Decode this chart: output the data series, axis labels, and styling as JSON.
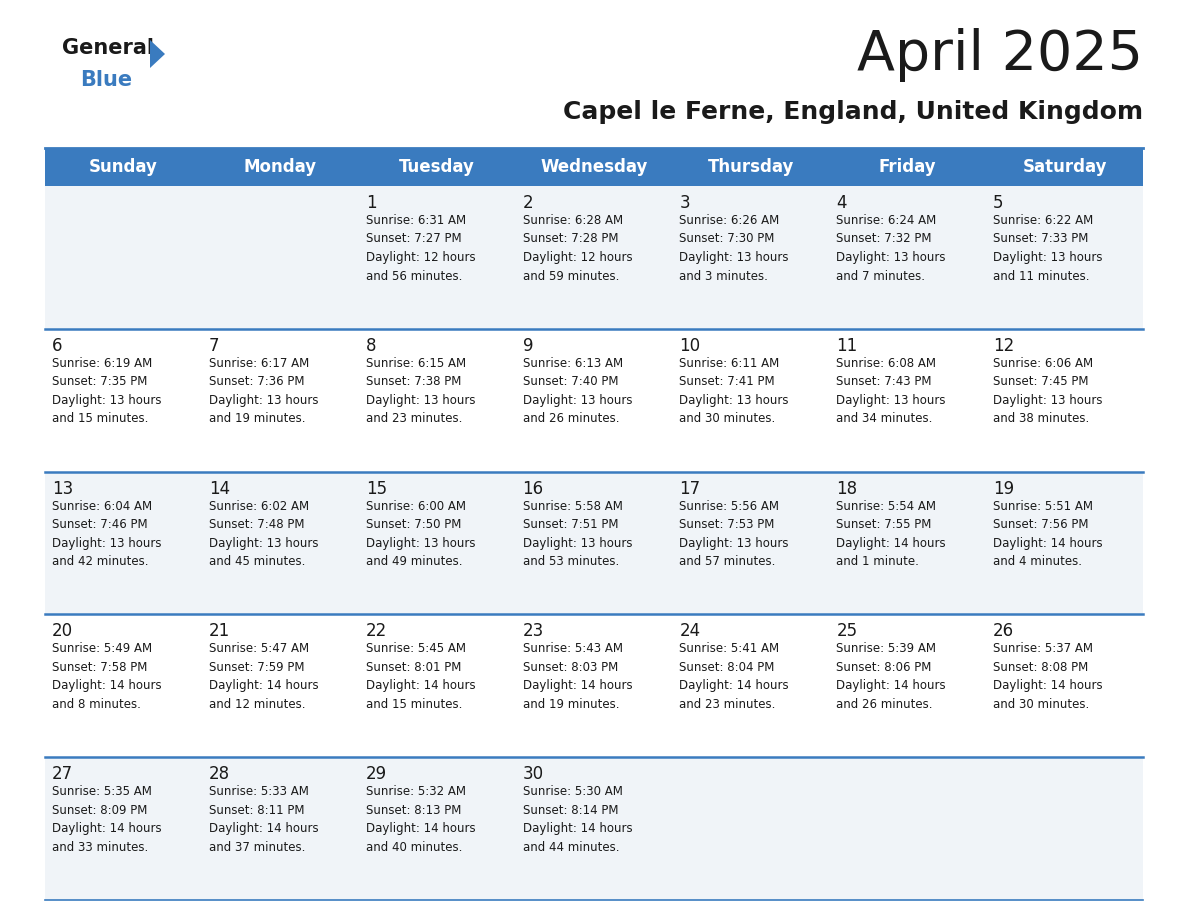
{
  "title": "April 2025",
  "subtitle": "Capel le Ferne, England, United Kingdom",
  "header_bg": "#3a7bbf",
  "header_text": "#ffffff",
  "row_bg_odd": "#f0f4f8",
  "row_bg_even": "#ffffff",
  "separator_color": "#3a7bbf",
  "day_headers": [
    "Sunday",
    "Monday",
    "Tuesday",
    "Wednesday",
    "Thursday",
    "Friday",
    "Saturday"
  ],
  "weeks": [
    [
      {
        "day": "",
        "info": ""
      },
      {
        "day": "",
        "info": ""
      },
      {
        "day": "1",
        "info": "Sunrise: 6:31 AM\nSunset: 7:27 PM\nDaylight: 12 hours\nand 56 minutes."
      },
      {
        "day": "2",
        "info": "Sunrise: 6:28 AM\nSunset: 7:28 PM\nDaylight: 12 hours\nand 59 minutes."
      },
      {
        "day": "3",
        "info": "Sunrise: 6:26 AM\nSunset: 7:30 PM\nDaylight: 13 hours\nand 3 minutes."
      },
      {
        "day": "4",
        "info": "Sunrise: 6:24 AM\nSunset: 7:32 PM\nDaylight: 13 hours\nand 7 minutes."
      },
      {
        "day": "5",
        "info": "Sunrise: 6:22 AM\nSunset: 7:33 PM\nDaylight: 13 hours\nand 11 minutes."
      }
    ],
    [
      {
        "day": "6",
        "info": "Sunrise: 6:19 AM\nSunset: 7:35 PM\nDaylight: 13 hours\nand 15 minutes."
      },
      {
        "day": "7",
        "info": "Sunrise: 6:17 AM\nSunset: 7:36 PM\nDaylight: 13 hours\nand 19 minutes."
      },
      {
        "day": "8",
        "info": "Sunrise: 6:15 AM\nSunset: 7:38 PM\nDaylight: 13 hours\nand 23 minutes."
      },
      {
        "day": "9",
        "info": "Sunrise: 6:13 AM\nSunset: 7:40 PM\nDaylight: 13 hours\nand 26 minutes."
      },
      {
        "day": "10",
        "info": "Sunrise: 6:11 AM\nSunset: 7:41 PM\nDaylight: 13 hours\nand 30 minutes."
      },
      {
        "day": "11",
        "info": "Sunrise: 6:08 AM\nSunset: 7:43 PM\nDaylight: 13 hours\nand 34 minutes."
      },
      {
        "day": "12",
        "info": "Sunrise: 6:06 AM\nSunset: 7:45 PM\nDaylight: 13 hours\nand 38 minutes."
      }
    ],
    [
      {
        "day": "13",
        "info": "Sunrise: 6:04 AM\nSunset: 7:46 PM\nDaylight: 13 hours\nand 42 minutes."
      },
      {
        "day": "14",
        "info": "Sunrise: 6:02 AM\nSunset: 7:48 PM\nDaylight: 13 hours\nand 45 minutes."
      },
      {
        "day": "15",
        "info": "Sunrise: 6:00 AM\nSunset: 7:50 PM\nDaylight: 13 hours\nand 49 minutes."
      },
      {
        "day": "16",
        "info": "Sunrise: 5:58 AM\nSunset: 7:51 PM\nDaylight: 13 hours\nand 53 minutes."
      },
      {
        "day": "17",
        "info": "Sunrise: 5:56 AM\nSunset: 7:53 PM\nDaylight: 13 hours\nand 57 minutes."
      },
      {
        "day": "18",
        "info": "Sunrise: 5:54 AM\nSunset: 7:55 PM\nDaylight: 14 hours\nand 1 minute."
      },
      {
        "day": "19",
        "info": "Sunrise: 5:51 AM\nSunset: 7:56 PM\nDaylight: 14 hours\nand 4 minutes."
      }
    ],
    [
      {
        "day": "20",
        "info": "Sunrise: 5:49 AM\nSunset: 7:58 PM\nDaylight: 14 hours\nand 8 minutes."
      },
      {
        "day": "21",
        "info": "Sunrise: 5:47 AM\nSunset: 7:59 PM\nDaylight: 14 hours\nand 12 minutes."
      },
      {
        "day": "22",
        "info": "Sunrise: 5:45 AM\nSunset: 8:01 PM\nDaylight: 14 hours\nand 15 minutes."
      },
      {
        "day": "23",
        "info": "Sunrise: 5:43 AM\nSunset: 8:03 PM\nDaylight: 14 hours\nand 19 minutes."
      },
      {
        "day": "24",
        "info": "Sunrise: 5:41 AM\nSunset: 8:04 PM\nDaylight: 14 hours\nand 23 minutes."
      },
      {
        "day": "25",
        "info": "Sunrise: 5:39 AM\nSunset: 8:06 PM\nDaylight: 14 hours\nand 26 minutes."
      },
      {
        "day": "26",
        "info": "Sunrise: 5:37 AM\nSunset: 8:08 PM\nDaylight: 14 hours\nand 30 minutes."
      }
    ],
    [
      {
        "day": "27",
        "info": "Sunrise: 5:35 AM\nSunset: 8:09 PM\nDaylight: 14 hours\nand 33 minutes."
      },
      {
        "day": "28",
        "info": "Sunrise: 5:33 AM\nSunset: 8:11 PM\nDaylight: 14 hours\nand 37 minutes."
      },
      {
        "day": "29",
        "info": "Sunrise: 5:32 AM\nSunset: 8:13 PM\nDaylight: 14 hours\nand 40 minutes."
      },
      {
        "day": "30",
        "info": "Sunrise: 5:30 AM\nSunset: 8:14 PM\nDaylight: 14 hours\nand 44 minutes."
      },
      {
        "day": "",
        "info": ""
      },
      {
        "day": "",
        "info": ""
      },
      {
        "day": "",
        "info": ""
      }
    ]
  ],
  "logo_general_color": "#1a1a1a",
  "logo_blue_color": "#3a7bbf",
  "logo_triangle_color": "#3a7bbf"
}
